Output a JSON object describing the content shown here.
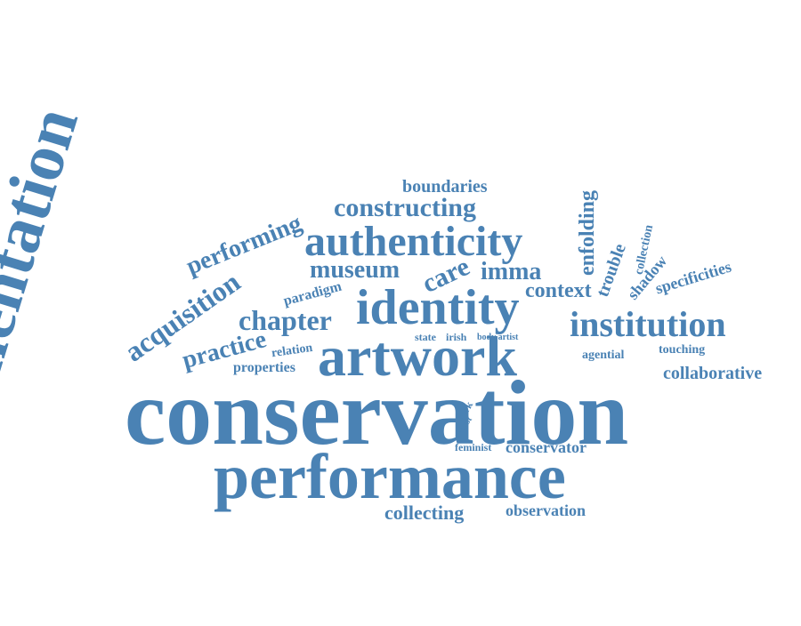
{
  "color": "#4a82b4",
  "words": [
    {
      "key": "documentation",
      "text": "documentation"
    },
    {
      "key": "conservation",
      "text": "conservation"
    },
    {
      "key": "performance",
      "text": "performance"
    },
    {
      "key": "artwork",
      "text": "artwork"
    },
    {
      "key": "identity",
      "text": "identity"
    },
    {
      "key": "authenticity",
      "text": "authenticity"
    },
    {
      "key": "institution",
      "text": "institution"
    },
    {
      "key": "acquisition",
      "text": "acquisition"
    },
    {
      "key": "chapter",
      "text": "chapter"
    },
    {
      "key": "constructing",
      "text": "constructing"
    },
    {
      "key": "performing",
      "text": "performing"
    },
    {
      "key": "museum",
      "text": "museum"
    },
    {
      "key": "practice",
      "text": "practice"
    },
    {
      "key": "care",
      "text": "care"
    },
    {
      "key": "imma",
      "text": "imma"
    },
    {
      "key": "context",
      "text": "context"
    },
    {
      "key": "enfolding",
      "text": "enfolding"
    },
    {
      "key": "trouble",
      "text": "trouble"
    },
    {
      "key": "collection",
      "text": "collection"
    },
    {
      "key": "shadow",
      "text": "shadow"
    },
    {
      "key": "specificities",
      "text": "specificities"
    },
    {
      "key": "boundaries",
      "text": "boundaries"
    },
    {
      "key": "paradigm",
      "text": "paradigm"
    },
    {
      "key": "relation",
      "text": "relation"
    },
    {
      "key": "properties",
      "text": "properties"
    },
    {
      "key": "state",
      "text": "state"
    },
    {
      "key": "irish",
      "text": "irish"
    },
    {
      "key": "body-artist",
      "text": "body artist"
    },
    {
      "key": "agential",
      "text": "agential"
    },
    {
      "key": "touching",
      "text": "touching"
    },
    {
      "key": "collaborative",
      "text": "collaborative"
    },
    {
      "key": "work",
      "text": "work"
    },
    {
      "key": "realist",
      "text": "realist"
    },
    {
      "key": "feminist",
      "text": "feminist"
    },
    {
      "key": "conservator",
      "text": "conservator"
    },
    {
      "key": "collecting",
      "text": "collecting"
    },
    {
      "key": "observation",
      "text": "observation"
    }
  ]
}
